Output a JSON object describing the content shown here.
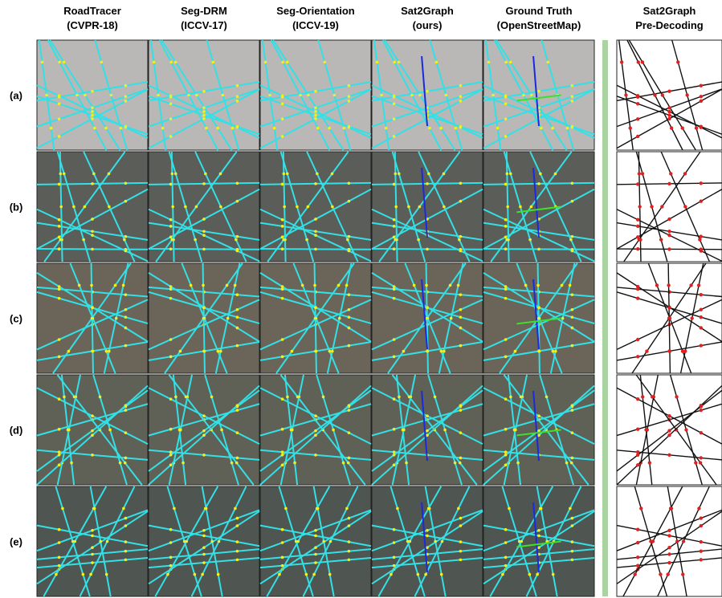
{
  "columns": [
    {
      "title": "RoadTracer",
      "subtitle": "(CVPR-18)"
    },
    {
      "title": "Seg-DRM",
      "subtitle": "(ICCV-17)"
    },
    {
      "title": "Seg-Orientation",
      "subtitle": "(ICCV-19)"
    },
    {
      "title": "Sat2Graph",
      "subtitle": "(ours)"
    },
    {
      "title": "Ground Truth",
      "subtitle": "(OpenStreetMap)"
    },
    {
      "title": "Sat2Graph",
      "subtitle": "Pre-Decoding"
    }
  ],
  "rows": [
    "(a)",
    "(b)",
    "(c)",
    "(d)",
    "(e)"
  ]
}
